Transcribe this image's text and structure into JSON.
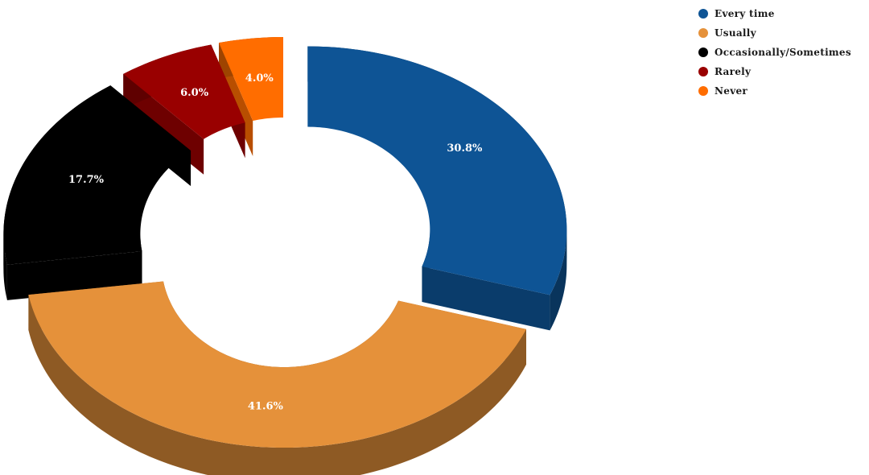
{
  "chart_data": {
    "type": "pie",
    "variant": "3d-donut-exploded",
    "title": "",
    "legend_position": "top-right",
    "series": [
      {
        "label": "Every time",
        "value": 30.8,
        "value_label": "30.8%",
        "color": "#0e5495"
      },
      {
        "label": "Usually",
        "value": 41.6,
        "value_label": "41.6%",
        "color": "#e5913a"
      },
      {
        "label": "Occasionally/Sometimes",
        "value": 17.7,
        "value_label": "17.7%",
        "color": "#000000"
      },
      {
        "label": "Rarely",
        "value": 6.0,
        "value_label": "6.0%",
        "color": "#990000"
      },
      {
        "label": "Never",
        "value": 4.0,
        "value_label": "4.0%",
        "color": "#ff6d00"
      }
    ]
  }
}
